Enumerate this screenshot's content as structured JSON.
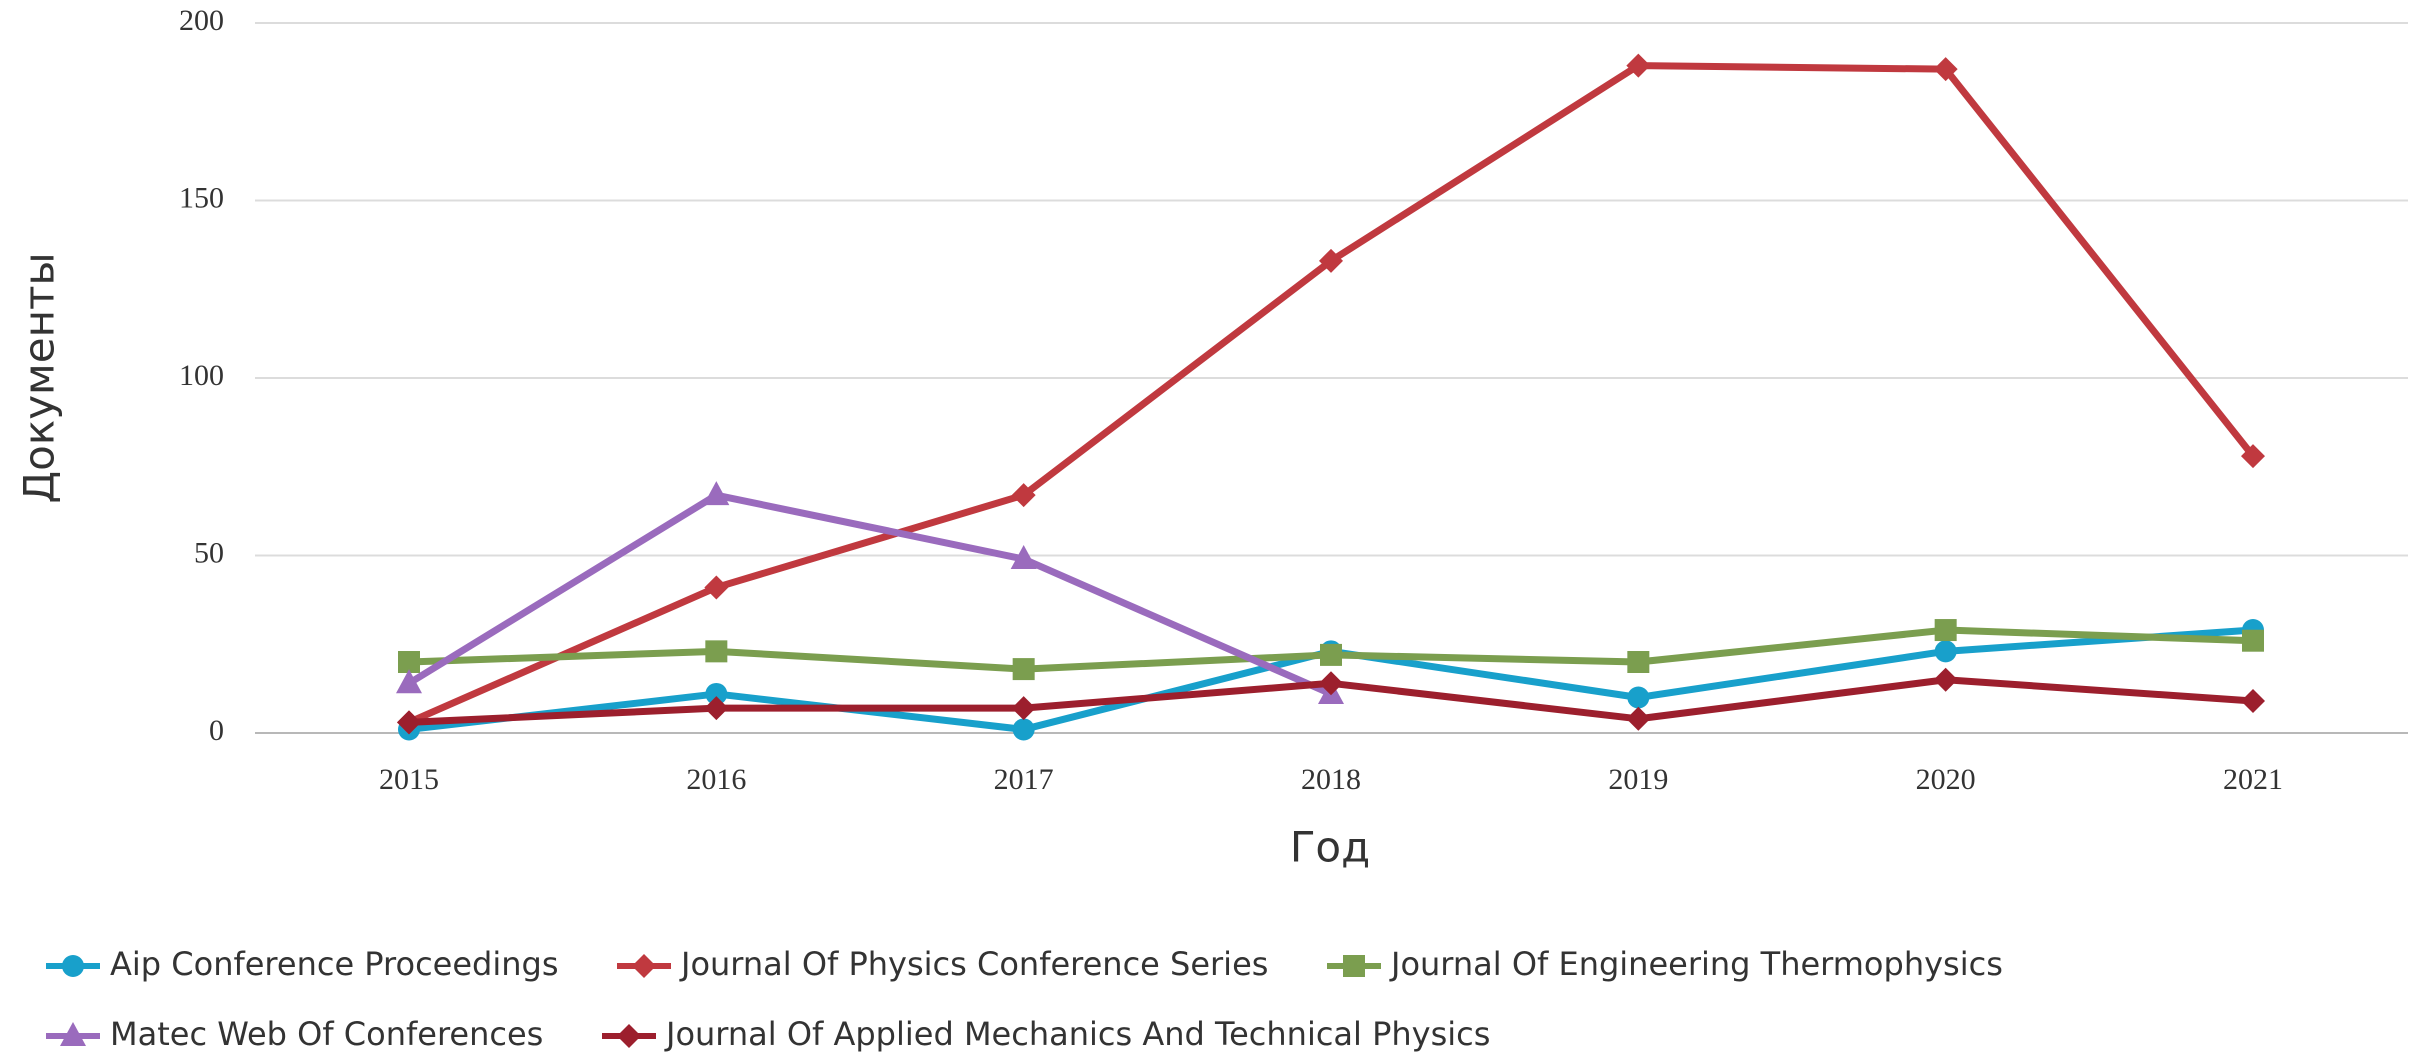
{
  "chart_data": {
    "type": "line",
    "y_label": "Документы",
    "x_label": "Год",
    "categories": [
      "2015",
      "2016",
      "2017",
      "2018",
      "2019",
      "2020",
      "2021"
    ],
    "ylim": [
      0,
      200
    ],
    "yticks": [
      0,
      50,
      100,
      150,
      200
    ],
    "grid": true,
    "legend": "bottom",
    "series": [
      {
        "name": "Aip Conference Proceedings",
        "color": "#18a0cb",
        "marker": "circle",
        "values": [
          1,
          11,
          1,
          23,
          10,
          23,
          29
        ]
      },
      {
        "name": "Journal Of Physics Conference Series",
        "color": "#c0393f",
        "marker": "diamond",
        "values": [
          3,
          41,
          67,
          133,
          188,
          187,
          78
        ]
      },
      {
        "name": "Journal Of Engineering Thermophysics",
        "color": "#7b9e4f",
        "marker": "square",
        "values": [
          20,
          23,
          18,
          22,
          20,
          29,
          26
        ]
      },
      {
        "name": "Matec Web Of Conferences",
        "color": "#9a6bbd",
        "marker": "triangle",
        "values": [
          14,
          67,
          49,
          11,
          null,
          null,
          null
        ]
      },
      {
        "name": "Journal Of Applied Mechanics And Technical Physics",
        "color": "#9c1f2d",
        "marker": "diamond",
        "values": [
          3,
          7,
          7,
          14,
          4,
          15,
          9
        ]
      }
    ]
  }
}
